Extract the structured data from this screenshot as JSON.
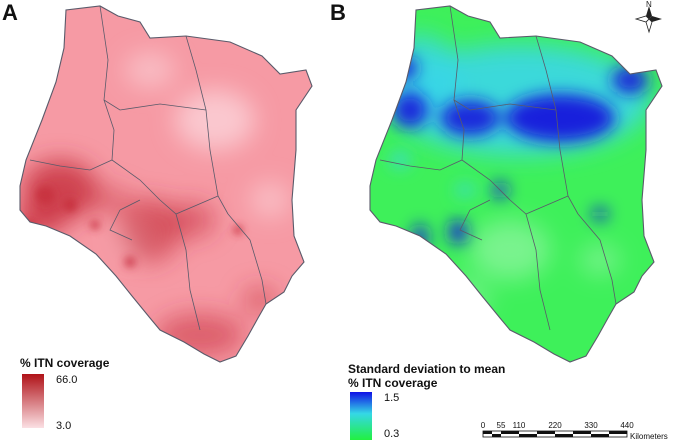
{
  "panels": {
    "a": {
      "label": "A"
    },
    "b": {
      "label": "B"
    }
  },
  "legend_a": {
    "title": "% ITN coverage",
    "max": "66.0",
    "min": "3.0",
    "color_high": "#b01218",
    "color_low": "#fbe0e4"
  },
  "legend_b": {
    "title_line1": "Standard deviation to mean",
    "title_line2": "% ITN coverage",
    "max": "1.5",
    "min": "0.3",
    "color_high": "#1010e6",
    "color_low": "#22f040"
  },
  "map_colors": {
    "a_base": "#f69aa4",
    "a_dark": "#c8313e",
    "a_light": "#fbd3d9",
    "b_base": "#3ef05a",
    "b_cyan": "#3ad6e8",
    "b_blue": "#1616dc",
    "b_light": "#a9f5b8",
    "boundary": "#5a5a6a"
  },
  "north_arrow": {
    "label": "N",
    "icon": "north-arrow-icon"
  },
  "scale_bar": {
    "ticks": [
      "0",
      "55",
      "110",
      "220",
      "330",
      "440"
    ],
    "unit": "Kilometers"
  }
}
